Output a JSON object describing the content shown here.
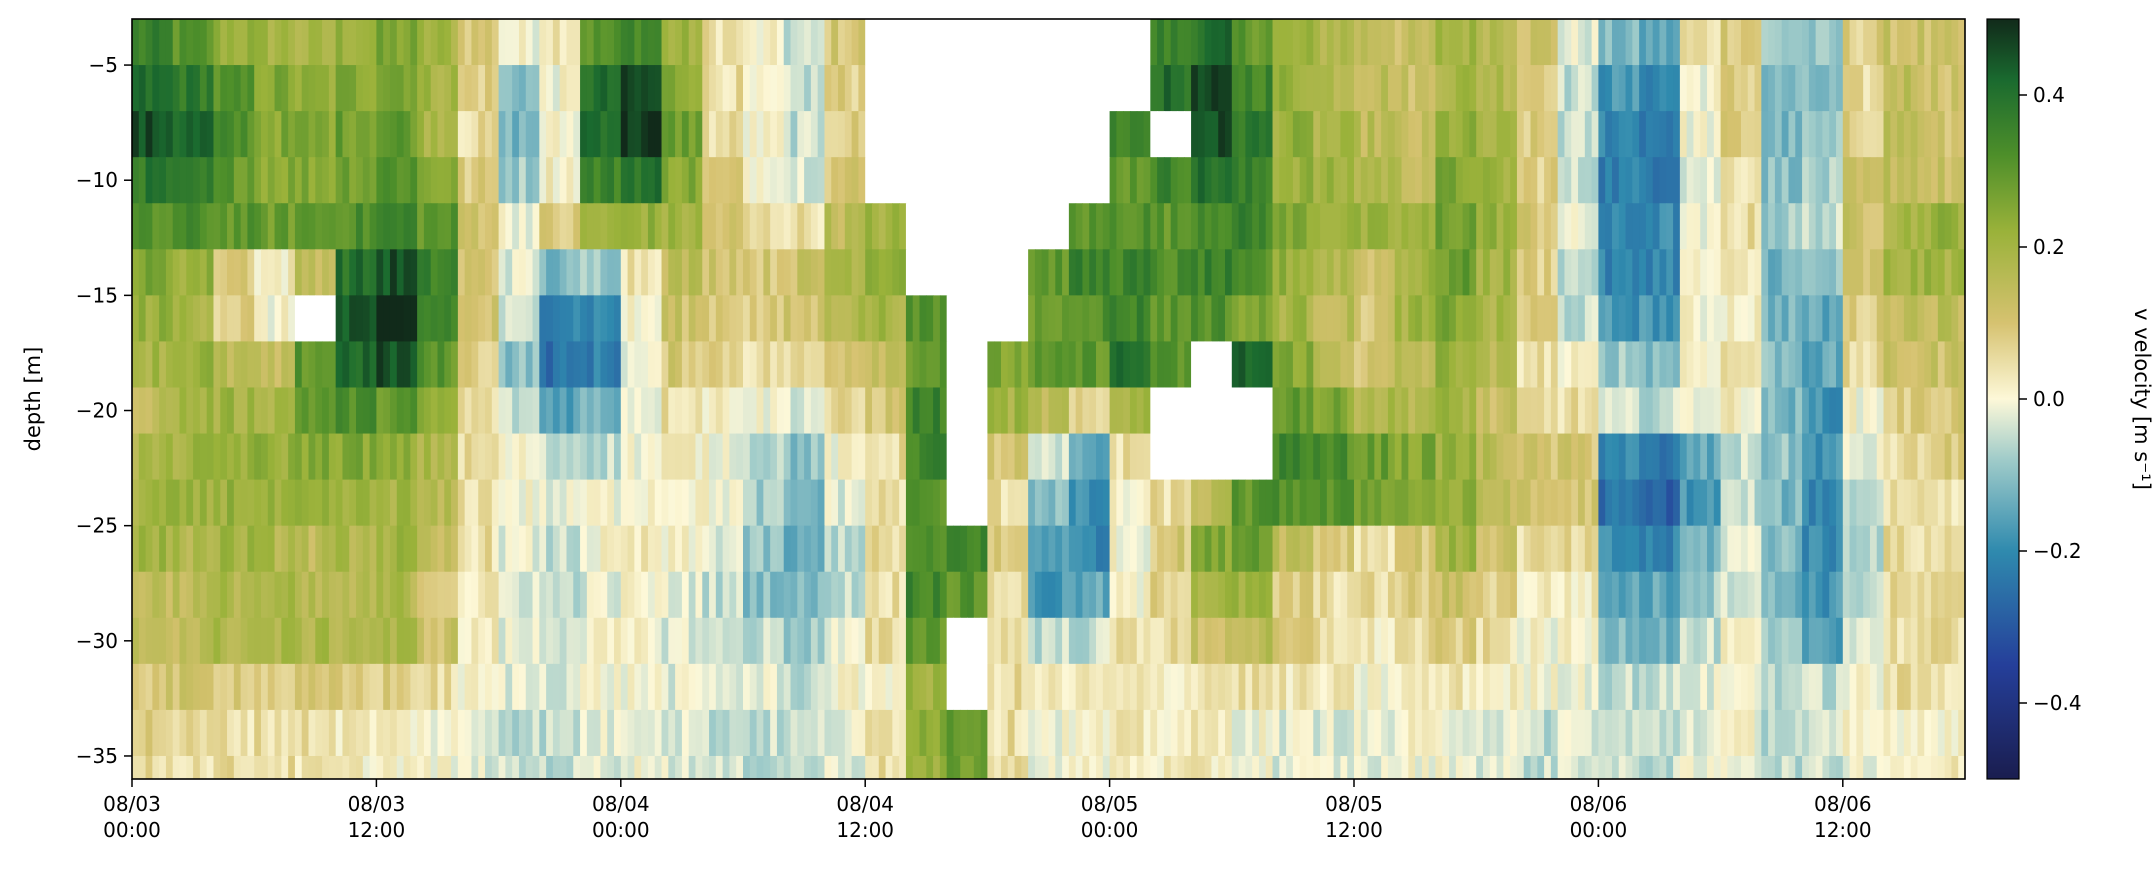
{
  "chart_data": {
    "type": "heatmap",
    "title": "",
    "xlabel": "",
    "ylabel": "depth [m]",
    "colorbar_label": "v velocity [m s⁻¹]",
    "x_tick_labels": [
      [
        "08/03",
        "00:00"
      ],
      [
        "08/03",
        "12:00"
      ],
      [
        "08/04",
        "00:00"
      ],
      [
        "08/04",
        "12:00"
      ],
      [
        "08/05",
        "00:00"
      ],
      [
        "08/05",
        "12:00"
      ],
      [
        "08/06",
        "00:00"
      ],
      [
        "08/06",
        "12:00"
      ]
    ],
    "x_ticks_hours": [
      0,
      12,
      24,
      36,
      48,
      60,
      72,
      84
    ],
    "xlim_hours": [
      0,
      90
    ],
    "y_ticks": [
      -5,
      -10,
      -15,
      -20,
      -25,
      -30,
      -35
    ],
    "ylim": [
      -36,
      -3
    ],
    "colorbar_ticks": [
      0.4,
      0.2,
      0.0,
      -0.2,
      -0.4
    ],
    "clim": [
      -0.5,
      0.5
    ],
    "colormap": "delta-like (blue–teal–cream–olive–green)",
    "colors": {
      "min": "#1a1d4f",
      "neg_mid": "#2f8aae",
      "neg_light": "#9fcbc9",
      "zero": "#fdf8d8",
      "pos_light": "#d6c270",
      "pos_mid": "#7aa626",
      "pos_strong": "#1a6a2f",
      "max": "#112a1a",
      "nodata": "#ffffff"
    },
    "time_columns_hours": [
      0,
      2,
      4,
      6,
      8,
      10,
      12,
      14,
      16,
      18,
      20,
      22,
      24,
      26,
      28,
      30,
      32,
      34,
      36,
      38,
      40,
      42,
      44,
      46,
      48,
      50,
      52,
      54,
      56,
      58,
      60,
      62,
      64,
      66,
      68,
      70,
      72,
      74,
      76,
      78,
      80,
      82,
      84,
      86,
      88
    ],
    "depth_rows": [
      -4,
      -6,
      -8,
      -10,
      -12,
      -14,
      -16,
      -18,
      -20,
      -22,
      -24,
      -26,
      -28,
      -30,
      -32,
      -34,
      -36
    ],
    "v_grid_rows_by_depth": [
      [
        0.35,
        0.3,
        0.22,
        0.2,
        0.18,
        0.22,
        0.25,
        0.2,
        0.1,
        0.0,
        0.05,
        0.3,
        0.35,
        0.2,
        0.05,
        0.0,
        -0.05,
        0.1,
        null,
        null,
        null,
        null,
        null,
        null,
        null,
        0.35,
        0.4,
        0.3,
        0.2,
        0.18,
        0.15,
        0.12,
        0.2,
        0.18,
        0.12,
        -0.02,
        -0.12,
        -0.15,
        0.05,
        0.1,
        -0.08,
        -0.1,
        0.08,
        0.12,
        0.1
      ],
      [
        0.4,
        0.38,
        0.3,
        0.25,
        0.22,
        0.25,
        0.28,
        0.2,
        0.08,
        -0.1,
        0.0,
        0.4,
        0.45,
        0.25,
        0.05,
        -0.02,
        -0.05,
        0.08,
        null,
        null,
        null,
        null,
        null,
        null,
        null,
        0.4,
        0.45,
        0.35,
        0.22,
        0.18,
        0.15,
        0.12,
        0.2,
        0.18,
        0.1,
        -0.05,
        -0.18,
        -0.2,
        0.0,
        0.08,
        -0.12,
        -0.12,
        0.05,
        0.15,
        0.12
      ],
      [
        0.45,
        0.42,
        0.32,
        0.25,
        0.25,
        0.28,
        0.3,
        0.2,
        0.05,
        -0.12,
        0.0,
        0.42,
        0.48,
        0.28,
        0.05,
        0.0,
        -0.05,
        0.08,
        null,
        null,
        null,
        null,
        null,
        null,
        0.35,
        null,
        0.45,
        0.38,
        0.22,
        0.18,
        0.15,
        0.12,
        0.22,
        0.18,
        0.08,
        -0.05,
        -0.2,
        -0.22,
        0.0,
        0.08,
        -0.12,
        -0.1,
        0.08,
        0.15,
        0.1
      ],
      [
        0.38,
        0.35,
        0.3,
        0.25,
        0.25,
        0.28,
        0.32,
        0.25,
        0.08,
        -0.08,
        0.02,
        0.35,
        0.4,
        0.25,
        0.08,
        0.02,
        -0.02,
        0.1,
        null,
        null,
        null,
        null,
        null,
        null,
        0.3,
        0.35,
        0.4,
        0.35,
        0.22,
        0.2,
        0.18,
        0.15,
        0.25,
        0.2,
        0.08,
        -0.05,
        -0.22,
        -0.22,
        -0.02,
        0.05,
        -0.1,
        -0.08,
        0.1,
        0.15,
        0.12
      ],
      [
        0.3,
        0.32,
        0.3,
        0.28,
        0.3,
        0.32,
        0.35,
        0.3,
        0.12,
        0.0,
        0.08,
        0.2,
        0.22,
        0.2,
        0.1,
        0.05,
        0.05,
        0.15,
        0.2,
        null,
        null,
        null,
        null,
        0.3,
        0.32,
        0.3,
        0.35,
        0.35,
        0.25,
        0.22,
        0.2,
        0.2,
        0.28,
        0.22,
        0.1,
        -0.02,
        -0.22,
        -0.2,
        -0.02,
        0.05,
        -0.08,
        -0.05,
        0.12,
        0.2,
        0.22
      ],
      [
        0.25,
        0.22,
        0.1,
        0.02,
        0.15,
        0.4,
        0.45,
        0.35,
        0.1,
        -0.02,
        -0.12,
        -0.08,
        0.05,
        0.15,
        0.12,
        0.1,
        0.12,
        0.2,
        0.25,
        null,
        null,
        null,
        0.3,
        0.35,
        0.35,
        0.32,
        0.35,
        0.3,
        0.22,
        0.18,
        0.12,
        0.2,
        0.28,
        0.2,
        0.08,
        -0.05,
        -0.22,
        -0.2,
        0.0,
        0.02,
        -0.12,
        -0.1,
        0.1,
        0.2,
        0.2
      ],
      [
        0.22,
        0.2,
        0.08,
        0.0,
        null,
        0.45,
        0.48,
        0.35,
        0.1,
        -0.05,
        -0.2,
        -0.2,
        0.0,
        0.12,
        0.1,
        0.08,
        0.1,
        0.18,
        0.2,
        0.3,
        null,
        null,
        0.28,
        0.32,
        0.35,
        0.3,
        0.32,
        0.25,
        0.2,
        0.15,
        0.1,
        0.2,
        0.25,
        0.18,
        0.08,
        -0.05,
        -0.18,
        -0.18,
        0.0,
        0.02,
        -0.12,
        -0.15,
        0.08,
        0.15,
        0.15
      ],
      [
        0.2,
        0.22,
        0.15,
        0.12,
        0.3,
        0.42,
        0.45,
        0.3,
        0.08,
        -0.1,
        -0.25,
        -0.22,
        -0.02,
        0.1,
        0.08,
        0.05,
        0.05,
        0.12,
        0.15,
        0.3,
        null,
        0.25,
        0.28,
        0.3,
        0.4,
        0.3,
        null,
        0.42,
        0.25,
        0.15,
        0.1,
        0.15,
        0.22,
        0.15,
        0.05,
        0.0,
        -0.08,
        -0.1,
        0.02,
        0.05,
        -0.1,
        -0.15,
        0.05,
        0.12,
        0.12
      ],
      [
        0.15,
        0.2,
        0.2,
        0.2,
        0.3,
        0.32,
        0.3,
        0.22,
        0.05,
        -0.05,
        -0.15,
        -0.12,
        0.0,
        0.05,
        0.02,
        0.0,
        -0.02,
        0.05,
        0.1,
        0.35,
        null,
        0.2,
        0.15,
        0.05,
        0.2,
        null,
        null,
        null,
        0.3,
        0.25,
        0.18,
        0.18,
        0.2,
        0.12,
        0.05,
        0.05,
        -0.05,
        -0.05,
        0.0,
        0.02,
        -0.12,
        -0.18,
        0.0,
        0.08,
        0.1
      ],
      [
        0.18,
        0.2,
        0.22,
        0.22,
        0.25,
        0.25,
        0.22,
        0.18,
        0.05,
        0.0,
        -0.05,
        -0.05,
        0.0,
        0.02,
        0.0,
        -0.05,
        -0.1,
        0.0,
        0.05,
        0.35,
        null,
        0.1,
        -0.05,
        -0.15,
        0.05,
        null,
        null,
        null,
        0.35,
        0.32,
        0.28,
        0.25,
        0.22,
        0.15,
        0.1,
        0.1,
        -0.2,
        -0.25,
        -0.15,
        -0.05,
        -0.1,
        -0.18,
        -0.02,
        0.05,
        0.08
      ],
      [
        0.2,
        0.2,
        0.22,
        0.2,
        0.2,
        0.2,
        0.2,
        0.15,
        0.05,
        0.0,
        -0.02,
        0.0,
        0.02,
        0.02,
        0.0,
        -0.08,
        -0.12,
        -0.02,
        0.05,
        0.3,
        null,
        0.05,
        -0.1,
        -0.2,
        0.0,
        0.05,
        0.15,
        0.3,
        0.32,
        0.3,
        0.28,
        0.25,
        0.22,
        0.15,
        0.1,
        0.1,
        -0.25,
        -0.28,
        -0.18,
        -0.05,
        -0.12,
        -0.2,
        -0.05,
        0.05,
        0.05
      ],
      [
        0.2,
        0.18,
        0.2,
        0.18,
        0.15,
        0.18,
        0.2,
        0.12,
        0.05,
        -0.02,
        -0.05,
        0.0,
        0.02,
        0.0,
        -0.02,
        -0.1,
        -0.15,
        -0.05,
        0.05,
        0.3,
        0.35,
        0.08,
        -0.15,
        -0.2,
        0.0,
        0.1,
        0.25,
        0.3,
        0.15,
        0.1,
        0.05,
        0.1,
        0.2,
        0.12,
        0.05,
        0.05,
        -0.2,
        -0.22,
        -0.12,
        -0.02,
        -0.1,
        -0.2,
        -0.05,
        0.05,
        0.05
      ],
      [
        0.15,
        0.15,
        0.18,
        0.18,
        0.15,
        0.15,
        0.18,
        0.1,
        0.02,
        -0.02,
        -0.05,
        -0.02,
        0.0,
        -0.02,
        -0.05,
        -0.1,
        -0.12,
        -0.05,
        0.05,
        0.35,
        0.3,
        0.05,
        -0.18,
        -0.15,
        0.0,
        0.08,
        0.2,
        0.2,
        0.08,
        0.05,
        0.05,
        0.08,
        0.12,
        0.08,
        0.02,
        0.02,
        -0.15,
        -0.15,
        -0.08,
        -0.02,
        -0.12,
        -0.18,
        -0.05,
        0.05,
        0.05
      ],
      [
        0.15,
        0.15,
        0.18,
        0.18,
        0.18,
        0.18,
        0.18,
        0.12,
        0.02,
        -0.02,
        -0.02,
        0.0,
        0.0,
        -0.02,
        -0.05,
        -0.05,
        -0.08,
        -0.02,
        0.05,
        0.3,
        null,
        0.05,
        -0.05,
        -0.05,
        0.05,
        0.05,
        0.12,
        0.15,
        0.08,
        0.05,
        0.02,
        0.05,
        0.08,
        0.05,
        0.0,
        0.0,
        -0.1,
        -0.12,
        -0.05,
        0.0,
        -0.1,
        -0.15,
        -0.02,
        0.05,
        0.05
      ],
      [
        0.1,
        0.1,
        0.1,
        0.08,
        0.08,
        0.08,
        0.08,
        0.05,
        0.0,
        -0.02,
        -0.02,
        0.0,
        0.0,
        -0.02,
        -0.02,
        -0.02,
        -0.05,
        0.0,
        0.02,
        0.2,
        null,
        0.05,
        0.02,
        0.02,
        0.02,
        0.02,
        0.05,
        0.05,
        0.03,
        0.02,
        0.0,
        0.02,
        0.03,
        0.02,
        0.0,
        0.0,
        -0.05,
        -0.05,
        -0.02,
        0.0,
        -0.05,
        -0.05,
        0.0,
        0.05,
        0.05
      ],
      [
        0.08,
        0.05,
        0.05,
        0.05,
        0.05,
        0.03,
        0.02,
        0.0,
        -0.02,
        -0.05,
        -0.05,
        -0.02,
        0.0,
        -0.02,
        -0.05,
        -0.05,
        -0.05,
        -0.02,
        0.05,
        0.25,
        0.3,
        0.05,
        0.0,
        0.0,
        0.02,
        0.02,
        0.02,
        0.0,
        -0.02,
        -0.02,
        -0.02,
        0.0,
        0.0,
        -0.02,
        -0.05,
        -0.02,
        -0.05,
        -0.05,
        -0.02,
        0.0,
        -0.05,
        -0.05,
        0.0,
        0.02,
        0.02
      ],
      [
        0.05,
        0.05,
        0.05,
        0.05,
        0.03,
        0.02,
        0.02,
        0.0,
        -0.02,
        -0.05,
        -0.05,
        -0.02,
        0.0,
        -0.02,
        -0.05,
        -0.05,
        -0.05,
        -0.02,
        0.05,
        0.2,
        0.28,
        0.05,
        0.0,
        0.0,
        0.02,
        0.02,
        0.02,
        0.0,
        -0.02,
        -0.02,
        -0.02,
        0.0,
        0.0,
        -0.02,
        -0.05,
        -0.02,
        -0.05,
        -0.05,
        -0.02,
        0.0,
        -0.05,
        -0.05,
        0.0,
        0.02,
        0.02
      ]
    ]
  }
}
